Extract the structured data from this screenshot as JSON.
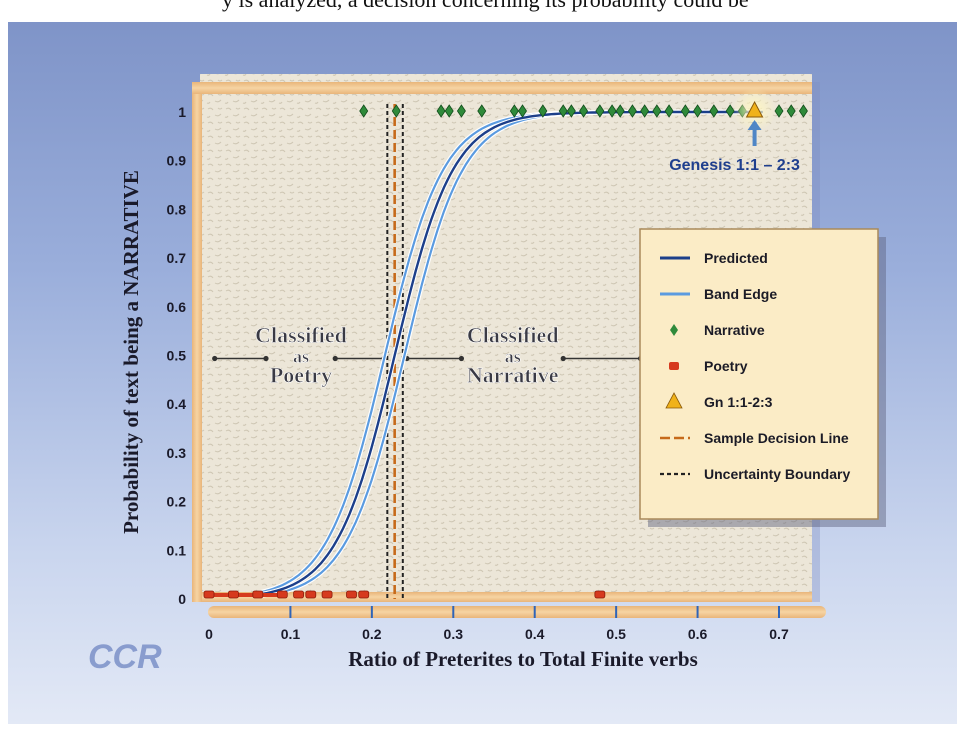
{
  "chart_data": {
    "type": "scatter",
    "title": "",
    "xlabel": "Ratio of Preterites to Total Finite verbs",
    "ylabel": "Probability of text being a NARRATIVE",
    "xlim": [
      0,
      0.78
    ],
    "ylim": [
      0,
      1
    ],
    "x_ticks": [
      "0",
      "0.1",
      "0.2",
      "0.3",
      "0.4",
      "0.5",
      "0.6",
      "0.7"
    ],
    "y_ticks": [
      "0",
      "0.1",
      "0.2",
      "0.3",
      "0.4",
      "0.5",
      "0.6",
      "0.7",
      "0.8",
      "0.9",
      "1"
    ],
    "regions": [
      {
        "label_line1": "Classified",
        "label_line2": "as",
        "label_line3": "Poetry"
      },
      {
        "label_line1": "Classified",
        "label_line2": "as",
        "label_line3": "Narrative"
      }
    ],
    "decision_line_x": 0.228,
    "uncertainty_bounds": [
      0.219,
      0.238
    ],
    "curve": {
      "midpoint": 0.228,
      "steepness": 28,
      "band_offset": 0.012
    },
    "narrative_points": [
      0.19,
      0.23,
      0.285,
      0.295,
      0.31,
      0.335,
      0.375,
      0.385,
      0.41,
      0.435,
      0.445,
      0.46,
      0.48,
      0.495,
      0.505,
      0.52,
      0.535,
      0.55,
      0.565,
      0.585,
      0.6,
      0.62,
      0.64,
      0.655,
      0.7,
      0.715,
      0.73
    ],
    "poetry_points": [
      0.0,
      0.03,
      0.06,
      0.09,
      0.11,
      0.125,
      0.145,
      0.175,
      0.19,
      0.48
    ],
    "highlight_point": {
      "x": 0.67,
      "y": 1.0,
      "label": "Genesis 1:1 – 2:3"
    },
    "legend": {
      "placement": "right",
      "items": [
        {
          "key": "predicted",
          "label": "Predicted"
        },
        {
          "key": "band",
          "label": "Band Edge"
        },
        {
          "key": "narrative",
          "label": "Narrative"
        },
        {
          "key": "poetry",
          "label": "Poetry"
        },
        {
          "key": "gn",
          "label": "Gn 1:1-2:3"
        },
        {
          "key": "decision",
          "label": "Sample Decision Line"
        },
        {
          "key": "uncertainty",
          "label": "Uncertainty Boundary"
        }
      ]
    },
    "colors": {
      "predicted": "#1c3f8a",
      "band": "#5b9be0",
      "narrative": "#2f8a3a",
      "poetry": "#d63a1e",
      "highlight": "#f0b21a",
      "decision": "#c66a1a",
      "uncertainty": "#222222",
      "frame": "#f1c48a",
      "plot_bg": "#ece6d8"
    }
  },
  "caption_text": "y is analyzed, a decision concerning its probability could be",
  "logo": "CCR"
}
